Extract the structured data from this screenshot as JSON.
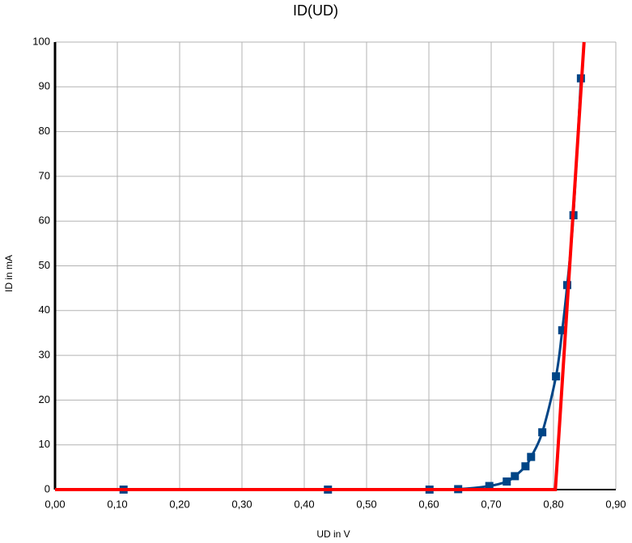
{
  "chart_data": {
    "type": "scatter",
    "title": "ID(UD)",
    "x_label": "UD in V",
    "y_label": "ID in mA",
    "xlim": [
      0,
      0.9
    ],
    "ylim": [
      0,
      100
    ],
    "grid": true,
    "xticks": [
      {
        "value": 0,
        "label": "0,00"
      },
      {
        "value": 0.1,
        "label": "0,10"
      },
      {
        "value": 0.2,
        "label": "0,20"
      },
      {
        "value": 0.3,
        "label": "0,30"
      },
      {
        "value": 0.4,
        "label": "0,40"
      },
      {
        "value": 0.5,
        "label": "0,50"
      },
      {
        "value": 0.6,
        "label": "0,60"
      },
      {
        "value": 0.7,
        "label": "0,70"
      },
      {
        "value": 0.8,
        "label": "0,80"
      },
      {
        "value": 0.9,
        "label": "0,90"
      }
    ],
    "yticks": [
      0,
      10,
      20,
      30,
      40,
      50,
      60,
      70,
      80,
      90,
      100
    ],
    "series": [
      {
        "color": "#004586",
        "line": "smooth",
        "marker": "square",
        "x": [
          0.11,
          0.438,
          0.601,
          0.647,
          0.697,
          0.725,
          0.738,
          0.755,
          0.764,
          0.782,
          0.804,
          0.814,
          0.822,
          0.832,
          0.844
        ],
        "values": [
          0,
          0,
          0,
          0.1,
          0.8,
          1.8,
          3.0,
          5.2,
          7.3,
          12.8,
          25.3,
          35.6,
          45.7,
          61.3,
          91.9
        ]
      },
      {
        "color": "#ff0000",
        "line": "straight",
        "marker": "none",
        "x": [
          0,
          0.803,
          0.849
        ],
        "values": [
          0,
          0,
          100
        ]
      }
    ]
  }
}
